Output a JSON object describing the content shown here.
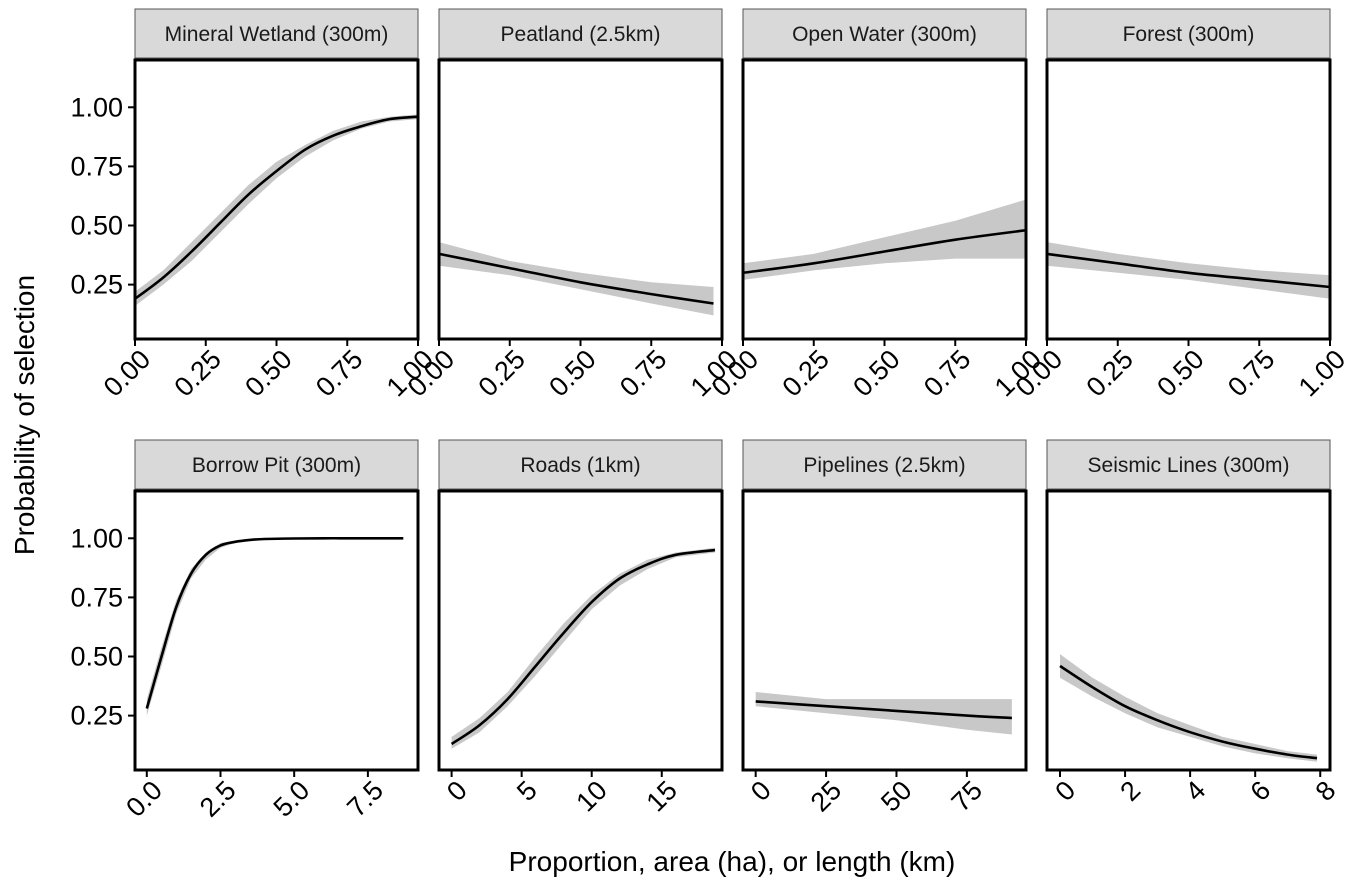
{
  "figure": {
    "ylabel": "Probability of selection",
    "xlabel": "Proportion, area (ha), or length (km)",
    "colors": {
      "line": "#000000",
      "ribbon": "#c8c8c8",
      "strip": "#d9d9d9",
      "strip_border": "#555555"
    }
  },
  "chart_data": [
    {
      "type": "line",
      "title": "Mineral Wetland (300m)",
      "xlim": [
        0,
        1
      ],
      "ylim": [
        0,
        1.2
      ],
      "xticks": [
        "0.00",
        "0.25",
        "0.50",
        "0.75",
        "1.00"
      ],
      "yticks": [
        "0.25",
        "0.50",
        "0.75",
        "1.00"
      ],
      "series": [
        {
          "x": [
            0,
            0.1,
            0.2,
            0.3,
            0.4,
            0.5,
            0.6,
            0.7,
            0.8,
            0.9,
            1.0
          ],
          "y": [
            0.19,
            0.28,
            0.39,
            0.51,
            0.63,
            0.73,
            0.82,
            0.88,
            0.92,
            0.95,
            0.96
          ],
          "lower": [
            0.16,
            0.25,
            0.35,
            0.47,
            0.59,
            0.7,
            0.79,
            0.86,
            0.91,
            0.94,
            0.95
          ],
          "upper": [
            0.22,
            0.31,
            0.43,
            0.55,
            0.67,
            0.77,
            0.84,
            0.9,
            0.94,
            0.96,
            0.97
          ]
        }
      ]
    },
    {
      "type": "line",
      "title": "Peatland (2.5km)",
      "xlim": [
        0,
        1
      ],
      "ylim": [
        0,
        1.2
      ],
      "xticks": [
        "0.00",
        "0.25",
        "0.50",
        "0.75",
        "1.00"
      ],
      "yticks": [
        "0.25",
        "0.50",
        "0.75",
        "1.00"
      ],
      "series": [
        {
          "x": [
            0,
            0.25,
            0.5,
            0.75,
            0.97
          ],
          "y": [
            0.38,
            0.32,
            0.26,
            0.21,
            0.17
          ],
          "lower": [
            0.33,
            0.29,
            0.23,
            0.17,
            0.12
          ],
          "upper": [
            0.43,
            0.35,
            0.3,
            0.26,
            0.24
          ]
        }
      ]
    },
    {
      "type": "line",
      "title": "Open Water (300m)",
      "xlim": [
        0,
        1
      ],
      "ylim": [
        0,
        1.2
      ],
      "xticks": [
        "0.00",
        "0.25",
        "0.50",
        "0.75",
        "1.00"
      ],
      "yticks": [
        "0.25",
        "0.50",
        "0.75",
        "1.00"
      ],
      "series": [
        {
          "x": [
            0,
            0.25,
            0.5,
            0.75,
            1.0
          ],
          "y": [
            0.3,
            0.34,
            0.39,
            0.44,
            0.48
          ],
          "lower": [
            0.27,
            0.31,
            0.34,
            0.36,
            0.36
          ],
          "upper": [
            0.34,
            0.38,
            0.45,
            0.52,
            0.61
          ]
        }
      ]
    },
    {
      "type": "line",
      "title": "Forest (300m)",
      "xlim": [
        0,
        1
      ],
      "ylim": [
        0,
        1.2
      ],
      "xticks": [
        "0.00",
        "0.25",
        "0.50",
        "0.75",
        "1.00"
      ],
      "yticks": [
        "0.25",
        "0.50",
        "0.75",
        "1.00"
      ],
      "series": [
        {
          "x": [
            0,
            0.25,
            0.5,
            0.75,
            1.0
          ],
          "y": [
            0.38,
            0.34,
            0.3,
            0.27,
            0.24
          ],
          "lower": [
            0.33,
            0.3,
            0.27,
            0.23,
            0.19
          ],
          "upper": [
            0.43,
            0.38,
            0.34,
            0.31,
            0.29
          ]
        }
      ]
    },
    {
      "type": "line",
      "title": "Borrow Pit (300m)",
      "xlim": [
        -0.4,
        9.2
      ],
      "ylim": [
        0,
        1.2
      ],
      "xticks": [
        "0.0",
        "2.5",
        "5.0",
        "7.5"
      ],
      "xtick_values": [
        0,
        2.5,
        5.0,
        7.5
      ],
      "yticks": [
        "0.25",
        "0.50",
        "0.75",
        "1.00"
      ],
      "series": [
        {
          "x": [
            0,
            0.5,
            1.0,
            1.5,
            2.0,
            2.5,
            3.0,
            3.5,
            4.0,
            5.0,
            6.0,
            7.0,
            8.7
          ],
          "y": [
            0.28,
            0.5,
            0.71,
            0.85,
            0.93,
            0.97,
            0.985,
            0.993,
            0.997,
            0.999,
            1.0,
            1.0,
            1.0
          ],
          "lower": [
            0.25,
            0.46,
            0.68,
            0.83,
            0.91,
            0.96,
            0.98,
            0.99,
            0.995,
            0.998,
            1.0,
            1.0,
            1.0
          ],
          "upper": [
            0.32,
            0.54,
            0.74,
            0.87,
            0.94,
            0.98,
            0.99,
            0.996,
            0.998,
            1.0,
            1.0,
            1.0,
            1.0
          ]
        }
      ]
    },
    {
      "type": "line",
      "title": "Roads (1km)",
      "xlim": [
        -0.9,
        19.3
      ],
      "ylim": [
        0,
        1.2
      ],
      "xticks": [
        "0",
        "5",
        "10",
        "15"
      ],
      "xtick_values": [
        0,
        5,
        10,
        15
      ],
      "yticks": [
        "0.25",
        "0.50",
        "0.75",
        "1.00"
      ],
      "series": [
        {
          "x": [
            0,
            2,
            4,
            6,
            8,
            10,
            12,
            14,
            16,
            18.8
          ],
          "y": [
            0.13,
            0.21,
            0.32,
            0.46,
            0.6,
            0.73,
            0.83,
            0.89,
            0.93,
            0.95
          ],
          "lower": [
            0.11,
            0.18,
            0.29,
            0.42,
            0.56,
            0.7,
            0.8,
            0.87,
            0.92,
            0.94
          ],
          "upper": [
            0.16,
            0.24,
            0.35,
            0.5,
            0.64,
            0.76,
            0.85,
            0.91,
            0.94,
            0.96
          ]
        }
      ]
    },
    {
      "type": "line",
      "title": "Pipelines (2.5km)",
      "xlim": [
        -4.5,
        96
      ],
      "ylim": [
        0,
        1.2
      ],
      "xticks": [
        "0",
        "25",
        "50",
        "75"
      ],
      "xtick_values": [
        0,
        25,
        50,
        75
      ],
      "yticks": [
        "0.25",
        "0.50",
        "0.75",
        "1.00"
      ],
      "series": [
        {
          "x": [
            0,
            25,
            50,
            75,
            91
          ],
          "y": [
            0.31,
            0.29,
            0.27,
            0.25,
            0.24
          ],
          "lower": [
            0.29,
            0.26,
            0.23,
            0.19,
            0.17
          ],
          "upper": [
            0.35,
            0.32,
            0.32,
            0.32,
            0.32
          ]
        }
      ]
    },
    {
      "type": "line",
      "title": "Seismic Lines (300m)",
      "xlim": [
        -0.4,
        8.3
      ],
      "ylim": [
        0,
        1.2
      ],
      "xticks": [
        "0",
        "2",
        "4",
        "6",
        "8"
      ],
      "xtick_values": [
        0,
        2,
        4,
        6,
        8
      ],
      "yticks": [
        "0.25",
        "0.50",
        "0.75",
        "1.00"
      ],
      "series": [
        {
          "x": [
            0,
            1,
            2,
            3,
            4,
            5,
            6,
            7,
            7.9
          ],
          "y": [
            0.46,
            0.37,
            0.29,
            0.23,
            0.18,
            0.14,
            0.11,
            0.085,
            0.07
          ],
          "lower": [
            0.41,
            0.33,
            0.26,
            0.2,
            0.16,
            0.12,
            0.09,
            0.07,
            0.055
          ],
          "upper": [
            0.51,
            0.41,
            0.33,
            0.26,
            0.21,
            0.16,
            0.13,
            0.1,
            0.085
          ]
        }
      ]
    }
  ]
}
